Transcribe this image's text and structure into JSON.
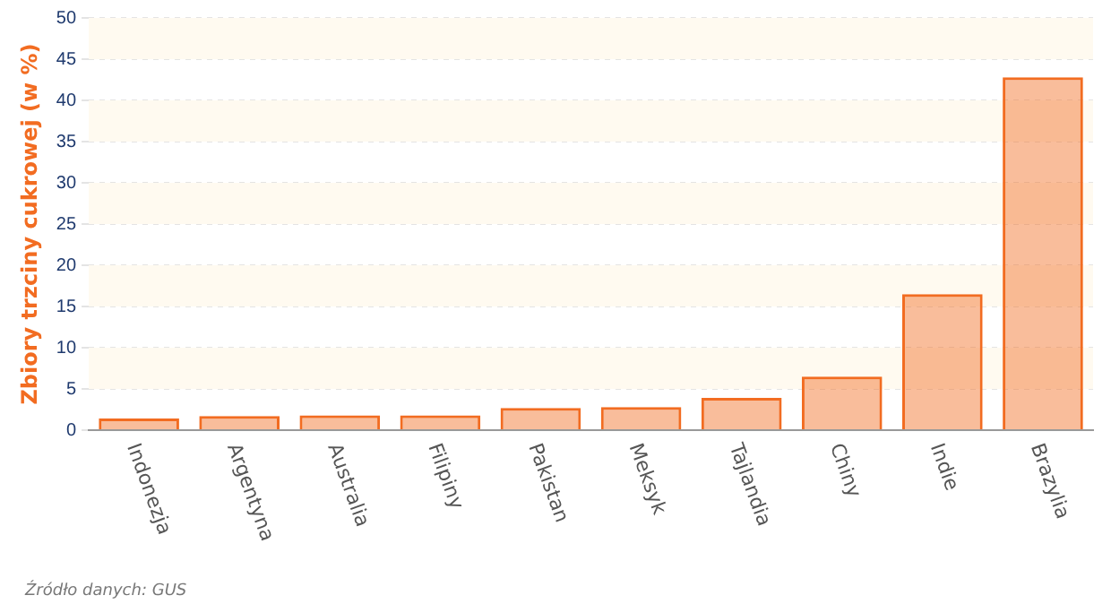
{
  "chart_data": {
    "type": "bar",
    "ylabel": "Zbiory trzciny cukrowej (w %)",
    "categories": [
      "Indonezja",
      "Argentyna",
      "Australia",
      "Filipiny",
      "Pakistan",
      "Meksyk",
      "Tajlandia",
      "Chiny",
      "Indie",
      "Brazylia"
    ],
    "values": [
      1.4,
      1.7,
      1.8,
      1.8,
      2.7,
      2.8,
      3.9,
      6.5,
      16.5,
      42.8
    ],
    "color": "#f26c21",
    "ylim": [
      0,
      50
    ],
    "yticks": [
      0,
      5,
      10,
      15,
      20,
      25,
      30,
      35,
      40,
      45,
      50
    ],
    "grid": "y",
    "annotations": [
      "Źródło danych: GUS"
    ]
  }
}
